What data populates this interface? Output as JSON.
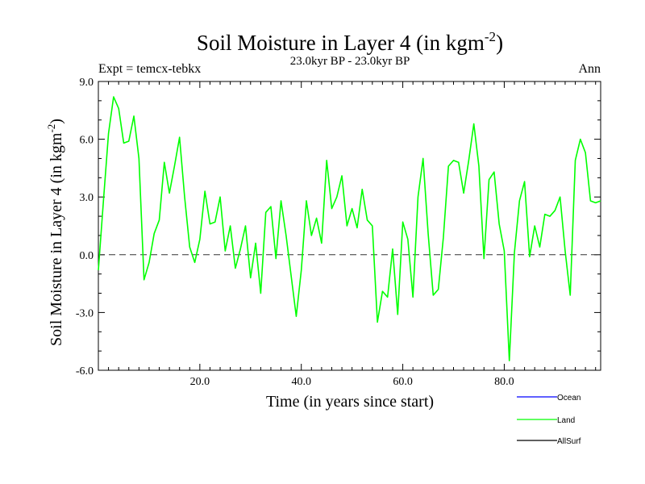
{
  "chart_data": {
    "type": "line",
    "title": "Soil Moisture in Layer 4 (in kgm",
    "title_sup": "-2",
    "title_close": ")",
    "subtitle": "23.0kyr BP - 23.0kyr BP",
    "left_label": "Expt = temcx-tebkx",
    "right_label": "Ann",
    "xlabel": "Time (in years since start)",
    "ylabel": "Soil Moisture in Layer 4 (in kgm",
    "ylabel_sup": "-2",
    "ylabel_close": ")",
    "xlim": [
      0,
      99
    ],
    "ylim": [
      -6.0,
      9.0
    ],
    "xticks": [
      20,
      40,
      60,
      80
    ],
    "xtick_labels": [
      "20.0",
      "40.0",
      "60.0",
      "80.0"
    ],
    "yticks": [
      -6,
      -3,
      0,
      3,
      6,
      9
    ],
    "ytick_labels": [
      "-6.0",
      "-3.0",
      "0.0",
      "3.0",
      "6.0",
      "9.0"
    ],
    "zero_line": 0.0,
    "legend": [
      {
        "name": "Ocean",
        "color": "#0000ff"
      },
      {
        "name": "Land",
        "color": "#00ff00"
      },
      {
        "name": "AllSurf",
        "color": "#000000"
      }
    ],
    "series": [
      {
        "name": "Land",
        "color": "#00ff00",
        "x": [
          0,
          1,
          2,
          3,
          4,
          5,
          6,
          7,
          8,
          9,
          10,
          11,
          12,
          13,
          14,
          15,
          16,
          17,
          18,
          19,
          20,
          21,
          22,
          23,
          24,
          25,
          26,
          27,
          28,
          29,
          30,
          31,
          32,
          33,
          34,
          35,
          36,
          37,
          38,
          39,
          40,
          41,
          42,
          43,
          44,
          45,
          46,
          47,
          48,
          49,
          50,
          51,
          52,
          53,
          54,
          55,
          56,
          57,
          58,
          59,
          60,
          61,
          62,
          63,
          64,
          65,
          66,
          67,
          68,
          69,
          70,
          71,
          72,
          73,
          74,
          75,
          76,
          77,
          78,
          79,
          80,
          81,
          82,
          83,
          84,
          85,
          86,
          87,
          88,
          89,
          90,
          91,
          92,
          93,
          94,
          95,
          96,
          97,
          98,
          99
        ],
        "values": [
          -0.8,
          2.8,
          6.3,
          8.2,
          7.6,
          5.8,
          5.9,
          7.2,
          5.0,
          -1.3,
          -0.4,
          1.1,
          1.8,
          4.8,
          3.2,
          4.6,
          6.1,
          3.0,
          0.4,
          -0.4,
          0.8,
          3.3,
          1.6,
          1.7,
          3.0,
          0.2,
          1.5,
          -0.7,
          0.3,
          1.5,
          -1.2,
          0.6,
          -2.0,
          2.2,
          2.5,
          -0.2,
          2.8,
          1.0,
          -1.1,
          -3.2,
          -0.8,
          2.8,
          1.0,
          1.9,
          0.6,
          4.9,
          2.4,
          3.0,
          4.1,
          1.5,
          2.4,
          1.4,
          3.4,
          1.8,
          1.5,
          -3.5,
          -1.9,
          -2.2,
          0.3,
          -3.1,
          1.7,
          0.8,
          -2.2,
          3.0,
          5.0,
          1.1,
          -2.1,
          -1.8,
          0.9,
          4.6,
          4.9,
          4.8,
          3.2,
          4.9,
          6.8,
          4.6,
          -0.2,
          3.9,
          4.3,
          1.6,
          0.2,
          -5.5,
          0.1,
          2.8,
          3.8,
          -0.1,
          1.5,
          0.4,
          2.1,
          2.0,
          2.3,
          3.0,
          0.2,
          -2.1,
          4.9,
          6.0,
          5.3,
          2.8,
          2.7,
          2.8
        ]
      }
    ]
  }
}
